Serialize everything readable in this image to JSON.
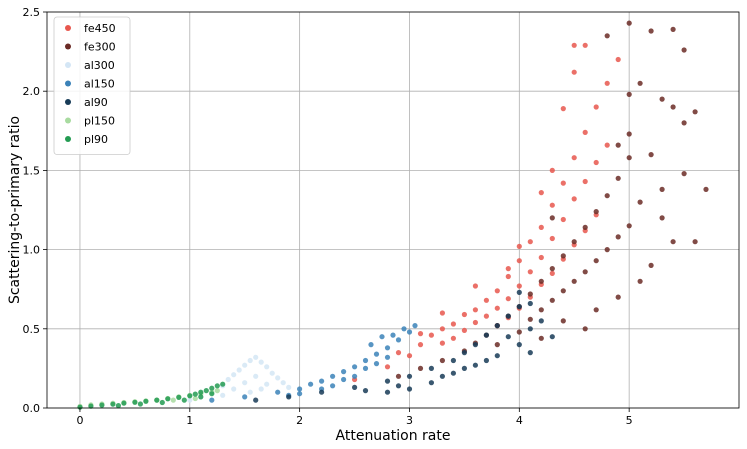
{
  "chart_data": {
    "type": "scatter",
    "title": "",
    "xlabel": "Attenuation rate",
    "ylabel": "Scattering-to-primary ratio",
    "xlim": [
      -0.3,
      6.0
    ],
    "ylim": [
      0,
      2.5
    ],
    "xticks": [
      "0",
      "1",
      "2",
      "3",
      "4",
      "5"
    ],
    "yticks": [
      "0.0",
      "0.5",
      "1.0",
      "1.5",
      "2.0",
      "2.5"
    ],
    "grid": true,
    "legend_position": "top-left",
    "series": [
      {
        "name": "fe450",
        "color": "#e8574e",
        "points": [
          [
            2.5,
            0.18
          ],
          [
            2.8,
            0.26
          ],
          [
            3.0,
            0.33
          ],
          [
            3.1,
            0.4
          ],
          [
            3.2,
            0.46
          ],
          [
            3.3,
            0.5
          ],
          [
            3.3,
            0.41
          ],
          [
            3.4,
            0.53
          ],
          [
            3.4,
            0.44
          ],
          [
            3.5,
            0.59
          ],
          [
            3.5,
            0.49
          ],
          [
            3.6,
            0.62
          ],
          [
            3.6,
            0.54
          ],
          [
            3.7,
            0.68
          ],
          [
            3.7,
            0.58
          ],
          [
            3.8,
            0.74
          ],
          [
            3.8,
            0.63
          ],
          [
            3.8,
            0.52
          ],
          [
            3.9,
            0.83
          ],
          [
            3.9,
            0.69
          ],
          [
            3.9,
            0.57
          ],
          [
            4.0,
            0.93
          ],
          [
            4.0,
            0.77
          ],
          [
            4.0,
            0.63
          ],
          [
            4.1,
            1.05
          ],
          [
            4.1,
            0.86
          ],
          [
            4.1,
            0.7
          ],
          [
            4.2,
            1.14
          ],
          [
            4.2,
            0.95
          ],
          [
            4.2,
            0.78
          ],
          [
            4.3,
            1.28
          ],
          [
            4.3,
            1.07
          ],
          [
            4.3,
            0.85
          ],
          [
            4.4,
            1.42
          ],
          [
            4.4,
            1.19
          ],
          [
            4.4,
            0.94
          ],
          [
            4.5,
            1.58
          ],
          [
            4.5,
            1.32
          ],
          [
            4.5,
            1.03
          ],
          [
            4.6,
            1.74
          ],
          [
            4.6,
            1.43
          ],
          [
            4.6,
            1.12
          ],
          [
            4.7,
            1.9
          ],
          [
            4.7,
            1.55
          ],
          [
            4.8,
            2.05
          ],
          [
            4.8,
            1.66
          ],
          [
            4.9,
            2.2
          ],
          [
            4.5,
            2.12
          ],
          [
            4.5,
            2.29
          ],
          [
            4.6,
            2.29
          ],
          [
            4.4,
            1.89
          ],
          [
            4.7,
            1.22
          ],
          [
            4.3,
            1.5
          ],
          [
            4.2,
            1.36
          ],
          [
            4.0,
            1.02
          ],
          [
            3.9,
            0.88
          ],
          [
            3.6,
            0.77
          ],
          [
            3.3,
            0.6
          ],
          [
            3.1,
            0.47
          ],
          [
            2.9,
            0.35
          ]
        ]
      },
      {
        "name": "fe300",
        "color": "#6b2b26",
        "points": [
          [
            2.9,
            0.2
          ],
          [
            3.1,
            0.25
          ],
          [
            3.3,
            0.3
          ],
          [
            3.5,
            0.36
          ],
          [
            3.6,
            0.41
          ],
          [
            3.7,
            0.46
          ],
          [
            3.8,
            0.52
          ],
          [
            3.9,
            0.58
          ],
          [
            4.0,
            0.48
          ],
          [
            4.0,
            0.64
          ],
          [
            4.1,
            0.56
          ],
          [
            4.1,
            0.72
          ],
          [
            4.2,
            0.62
          ],
          [
            4.2,
            0.8
          ],
          [
            4.3,
            0.68
          ],
          [
            4.3,
            0.88
          ],
          [
            4.4,
            0.74
          ],
          [
            4.4,
            0.96
          ],
          [
            4.5,
            0.8
          ],
          [
            4.5,
            1.05
          ],
          [
            4.6,
            0.86
          ],
          [
            4.6,
            1.14
          ],
          [
            4.7,
            0.93
          ],
          [
            4.7,
            1.24
          ],
          [
            4.8,
            1.0
          ],
          [
            4.8,
            1.34
          ],
          [
            4.9,
            1.08
          ],
          [
            4.9,
            1.45
          ],
          [
            5.0,
            1.15
          ],
          [
            5.0,
            1.58
          ],
          [
            5.0,
            1.73
          ],
          [
            5.0,
            1.98
          ],
          [
            5.0,
            2.43
          ],
          [
            5.1,
            1.3
          ],
          [
            5.1,
            2.05
          ],
          [
            5.2,
            2.38
          ],
          [
            5.3,
            1.95
          ],
          [
            5.3,
            1.38
          ],
          [
            5.4,
            1.9
          ],
          [
            5.4,
            2.39
          ],
          [
            5.5,
            2.26
          ],
          [
            5.5,
            1.48
          ],
          [
            5.5,
            1.8
          ],
          [
            5.6,
            1.05
          ],
          [
            5.6,
            1.87
          ],
          [
            5.7,
            1.38
          ],
          [
            5.4,
            1.05
          ],
          [
            5.3,
            1.2
          ],
          [
            5.2,
            0.9
          ],
          [
            5.1,
            0.8
          ],
          [
            4.9,
            0.7
          ],
          [
            4.7,
            0.62
          ],
          [
            4.4,
            0.55
          ],
          [
            4.2,
            0.44
          ],
          [
            4.6,
            0.5
          ],
          [
            4.9,
            1.66
          ],
          [
            5.2,
            1.6
          ],
          [
            4.8,
            2.35
          ],
          [
            4.3,
            1.2
          ],
          [
            3.8,
            0.4
          ]
        ]
      },
      {
        "name": "al300",
        "color": "#d4e6f5",
        "points": [
          [
            1.0,
            0.05
          ],
          [
            1.1,
            0.07
          ],
          [
            1.2,
            0.1
          ],
          [
            1.3,
            0.14
          ],
          [
            1.35,
            0.18
          ],
          [
            1.4,
            0.21
          ],
          [
            1.45,
            0.24
          ],
          [
            1.5,
            0.27
          ],
          [
            1.55,
            0.3
          ],
          [
            1.6,
            0.32
          ],
          [
            1.65,
            0.29
          ],
          [
            1.7,
            0.26
          ],
          [
            1.75,
            0.22
          ],
          [
            1.8,
            0.19
          ],
          [
            1.85,
            0.16
          ],
          [
            1.9,
            0.13
          ],
          [
            1.4,
            0.12
          ],
          [
            1.5,
            0.16
          ],
          [
            1.6,
            0.2
          ],
          [
            1.7,
            0.15
          ],
          [
            1.55,
            0.1
          ],
          [
            1.3,
            0.08
          ],
          [
            1.65,
            0.12
          ]
        ]
      },
      {
        "name": "al150",
        "color": "#3b82b8",
        "points": [
          [
            1.2,
            0.05
          ],
          [
            1.5,
            0.07
          ],
          [
            1.8,
            0.1
          ],
          [
            2.0,
            0.12
          ],
          [
            2.1,
            0.15
          ],
          [
            2.2,
            0.17
          ],
          [
            2.3,
            0.2
          ],
          [
            2.4,
            0.23
          ],
          [
            2.5,
            0.26
          ],
          [
            2.6,
            0.3
          ],
          [
            2.7,
            0.34
          ],
          [
            2.8,
            0.38
          ],
          [
            2.9,
            0.43
          ],
          [
            3.0,
            0.48
          ],
          [
            3.05,
            0.52
          ],
          [
            2.95,
            0.5
          ],
          [
            2.85,
            0.46
          ],
          [
            2.6,
            0.25
          ],
          [
            2.4,
            0.18
          ],
          [
            2.2,
            0.12
          ],
          [
            2.0,
            0.09
          ],
          [
            2.7,
            0.28
          ],
          [
            2.5,
            0.2
          ],
          [
            2.3,
            0.14
          ],
          [
            1.9,
            0.08
          ],
          [
            2.8,
            0.32
          ],
          [
            2.65,
            0.4
          ],
          [
            2.75,
            0.45
          ]
        ]
      },
      {
        "name": "al90",
        "color": "#173b57",
        "points": [
          [
            1.6,
            0.05
          ],
          [
            1.9,
            0.07
          ],
          [
            2.2,
            0.1
          ],
          [
            2.5,
            0.13
          ],
          [
            2.8,
            0.17
          ],
          [
            3.0,
            0.2
          ],
          [
            3.2,
            0.25
          ],
          [
            3.4,
            0.3
          ],
          [
            3.5,
            0.35
          ],
          [
            3.6,
            0.4
          ],
          [
            3.7,
            0.46
          ],
          [
            3.8,
            0.52
          ],
          [
            3.9,
            0.58
          ],
          [
            4.0,
            0.64
          ],
          [
            4.0,
            0.73
          ],
          [
            4.1,
            0.5
          ],
          [
            4.1,
            0.66
          ],
          [
            4.0,
            0.4
          ],
          [
            3.8,
            0.33
          ],
          [
            3.6,
            0.27
          ],
          [
            3.4,
            0.22
          ],
          [
            3.2,
            0.16
          ],
          [
            3.0,
            0.12
          ],
          [
            2.8,
            0.1
          ],
          [
            3.5,
            0.25
          ],
          [
            3.7,
            0.3
          ],
          [
            3.9,
            0.45
          ],
          [
            4.2,
            0.55
          ],
          [
            4.3,
            0.45
          ],
          [
            3.3,
            0.2
          ],
          [
            2.9,
            0.14
          ],
          [
            2.6,
            0.11
          ],
          [
            4.1,
            0.35
          ]
        ]
      },
      {
        "name": "pl150",
        "color": "#a8dba0",
        "points": [
          [
            0.0,
            0.01
          ],
          [
            0.1,
            0.02
          ],
          [
            0.2,
            0.025
          ],
          [
            0.3,
            0.03
          ],
          [
            0.4,
            0.035
          ],
          [
            0.5,
            0.04
          ],
          [
            0.6,
            0.045
          ],
          [
            0.7,
            0.05
          ],
          [
            0.8,
            0.06
          ],
          [
            0.9,
            0.07
          ],
          [
            1.0,
            0.08
          ],
          [
            1.1,
            0.09
          ],
          [
            1.2,
            0.1
          ],
          [
            1.25,
            0.11
          ],
          [
            0.85,
            0.05
          ],
          [
            1.05,
            0.06
          ]
        ]
      },
      {
        "name": "pl90",
        "color": "#239b52",
        "points": [
          [
            0.0,
            0.005
          ],
          [
            0.1,
            0.012
          ],
          [
            0.2,
            0.018
          ],
          [
            0.3,
            0.024
          ],
          [
            0.4,
            0.03
          ],
          [
            0.5,
            0.036
          ],
          [
            0.6,
            0.042
          ],
          [
            0.7,
            0.05
          ],
          [
            0.8,
            0.058
          ],
          [
            0.9,
            0.067
          ],
          [
            1.0,
            0.077
          ],
          [
            1.05,
            0.088
          ],
          [
            1.1,
            0.1
          ],
          [
            1.15,
            0.11
          ],
          [
            1.2,
            0.125
          ],
          [
            1.25,
            0.14
          ],
          [
            1.3,
            0.15
          ],
          [
            1.2,
            0.09
          ],
          [
            1.1,
            0.07
          ],
          [
            0.95,
            0.05
          ],
          [
            0.75,
            0.035
          ],
          [
            0.55,
            0.025
          ],
          [
            0.35,
            0.015
          ]
        ]
      }
    ]
  }
}
